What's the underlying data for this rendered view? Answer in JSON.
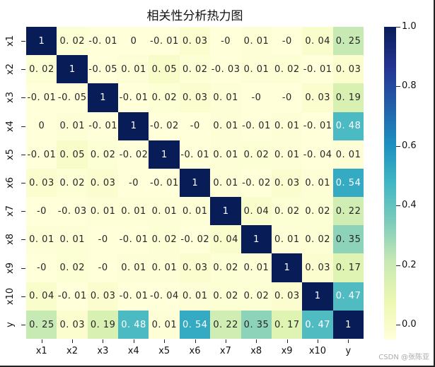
{
  "chart_data": {
    "type": "heatmap",
    "title": "相关性分析热力图",
    "xlabel": "",
    "ylabel": "",
    "x_labels": [
      "x1",
      "x2",
      "x3",
      "x4",
      "x5",
      "x6",
      "x7",
      "x8",
      "x9",
      "x10",
      "y"
    ],
    "y_labels": [
      "x1",
      "x2",
      "x3",
      "x4",
      "x5",
      "x6",
      "x7",
      "x8",
      "x9",
      "x10",
      "y"
    ],
    "matrix": [
      [
        "1",
        "0.02",
        "-0.01",
        "0",
        "-0.01",
        "0.03",
        "-0",
        "0.01",
        "-0",
        "0.04",
        "0.25"
      ],
      [
        "0.02",
        "1",
        "-0.05",
        "0.01",
        "0.05",
        "0.02",
        "-0.03",
        "0.01",
        "0.02",
        "-0.01",
        "0.03"
      ],
      [
        "-0.01",
        "-0.05",
        "1",
        "-0.01",
        "0.02",
        "0.03",
        "0.01",
        "-0",
        "-0",
        "0.03",
        "0.19"
      ],
      [
        "0",
        "0.01",
        "-0.01",
        "1",
        "-0.02",
        "-0",
        "0.01",
        "-0.01",
        "0.01",
        "-0.01",
        "0.48"
      ],
      [
        "-0.01",
        "0.05",
        "0.02",
        "-0.02",
        "1",
        "-0.01",
        "0.01",
        "0.02",
        "0.01",
        "-0.04",
        "0.01"
      ],
      [
        "0.03",
        "0.02",
        "0.03",
        "-0",
        "-0.01",
        "1",
        "0.01",
        "-0.02",
        "0.03",
        "0.01",
        "0.54"
      ],
      [
        "-0",
        "-0.03",
        "0.01",
        "0.01",
        "0.01",
        "0.01",
        "1",
        "0.04",
        "0.02",
        "0.02",
        "0.22"
      ],
      [
        "0.01",
        "0.01",
        "-0",
        "-0.01",
        "0.02",
        "-0.02",
        "0.04",
        "1",
        "0.01",
        "0.02",
        "0.35"
      ],
      [
        "-0",
        "0.02",
        "-0",
        "0.01",
        "0.01",
        "0.03",
        "0.02",
        "0.01",
        "1",
        "0.03",
        "0.17"
      ],
      [
        "0.04",
        "-0.01",
        "0.03",
        "-0.01",
        "-0.04",
        "0.01",
        "0.02",
        "0.02",
        "0.03",
        "1",
        "0.47"
      ],
      [
        "0.25",
        "0.03",
        "0.19",
        "0.48",
        "0.01",
        "0.54",
        "0.22",
        "0.35",
        "0.17",
        "0.47",
        "1"
      ]
    ],
    "colormap": "YlGnBu",
    "colorbar": {
      "ticks": [
        "1.0",
        "0.8",
        "0.6",
        "0.4",
        "0.2",
        "0.0"
      ],
      "range": [
        0,
        1
      ]
    },
    "annot": true,
    "grid": false,
    "legend_position": "right"
  },
  "watermark": "CSDN @张陈亚"
}
